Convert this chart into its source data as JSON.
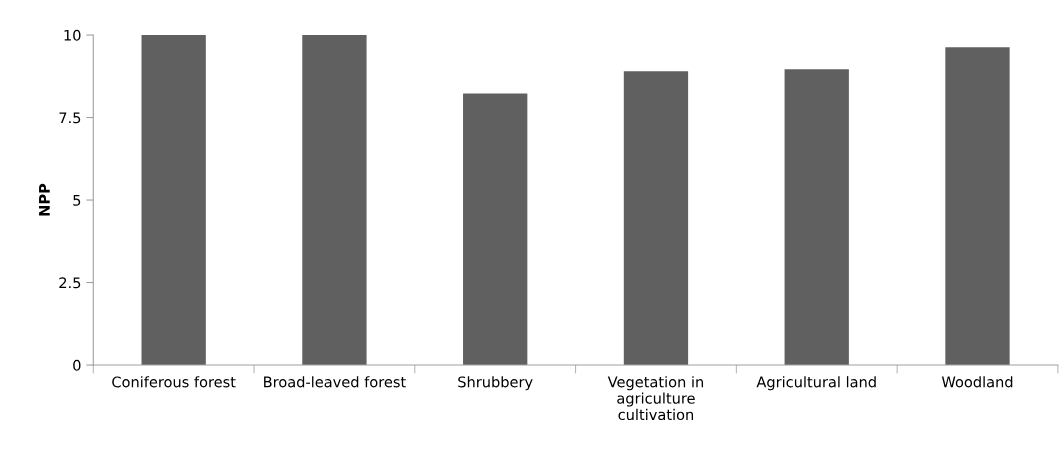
{
  "chart_data": {
    "type": "bar",
    "ylabel": "NPP",
    "categories": [
      "Coniferous forest",
      "Broad-leaved forest",
      "Shrubbery",
      "Vegetation in\nagriculture\ncultivation",
      "Agricultural land",
      "Woodland"
    ],
    "values": [
      10,
      10,
      8.23,
      8.9,
      8.96,
      9.63
    ],
    "color": "#606060",
    "ylim": [
      0,
      10
    ],
    "yticks": [
      0,
      2.5,
      5,
      7.5,
      10
    ],
    "grid": false
  }
}
